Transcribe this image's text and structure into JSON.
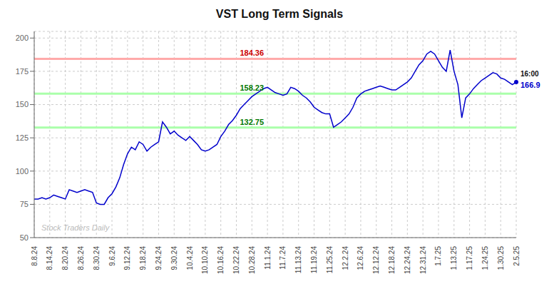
{
  "chart_data": {
    "type": "line",
    "title": "VST Long Term Signals",
    "categories": [
      "8.8.24",
      null,
      null,
      null,
      "8.14.24",
      null,
      null,
      null,
      "8.20.24",
      null,
      null,
      null,
      "8.26.24",
      null,
      null,
      null,
      "8.30.24",
      null,
      null,
      null,
      "9.6.24",
      null,
      null,
      null,
      "9.12.24",
      null,
      null,
      null,
      "9.18.24",
      null,
      null,
      null,
      "9.24.24",
      null,
      null,
      null,
      "9.30.24",
      null,
      null,
      null,
      "10.4.24",
      null,
      null,
      null,
      "10.10.24",
      null,
      null,
      null,
      "10.16.24",
      null,
      null,
      null,
      "10.22.24",
      null,
      null,
      null,
      "10.28.24",
      null,
      null,
      null,
      "11.1.24",
      null,
      null,
      null,
      "11.7.24",
      null,
      null,
      null,
      "11.13.24",
      null,
      null,
      null,
      "11.19.24",
      null,
      null,
      null,
      "11.25.24",
      null,
      null,
      null,
      "12.2.24",
      null,
      null,
      null,
      "12.6.24",
      null,
      null,
      null,
      "12.12.24",
      null,
      null,
      null,
      "12.18.24",
      null,
      null,
      null,
      "12.24.24",
      null,
      null,
      null,
      "12.31.24",
      null,
      null,
      null,
      "1.7.25",
      null,
      null,
      null,
      "1.13.25",
      null,
      null,
      null,
      "1.17.25",
      null,
      null,
      null,
      "1.24.25",
      null,
      null,
      null,
      "1.30.25",
      null,
      null,
      null,
      "2.5.25"
    ],
    "values": [
      79,
      79,
      80,
      79,
      80,
      82,
      81,
      80,
      79,
      86,
      85,
      84,
      85,
      86,
      85,
      84,
      76,
      75,
      75,
      80,
      83,
      88,
      95,
      105,
      113,
      118,
      116,
      122,
      120,
      115,
      118,
      120,
      122,
      137,
      133,
      128,
      130,
      127,
      125,
      123,
      126,
      123,
      120,
      116,
      115,
      116,
      118,
      120,
      126,
      130,
      135,
      138,
      142,
      147,
      150,
      153,
      156,
      158,
      160,
      162,
      163,
      161,
      159,
      158,
      157,
      158,
      163,
      162,
      160,
      157,
      155,
      152,
      148,
      146,
      144,
      143,
      143,
      133,
      135,
      137,
      140,
      143,
      148,
      155,
      158,
      160,
      161,
      162,
      163,
      164,
      163,
      162,
      161,
      161,
      163,
      165,
      167,
      170,
      175,
      180,
      183,
      188,
      190,
      188,
      183,
      178,
      175,
      191,
      175,
      165,
      140,
      155,
      158,
      162,
      165,
      168,
      170,
      172,
      174,
      173,
      170,
      169,
      167,
      165,
      166.9
    ],
    "color": "#0000cc",
    "ylim": [
      50,
      205
    ],
    "yticks": [
      50,
      75,
      100,
      125,
      150,
      175,
      200
    ],
    "grid": true,
    "hlines": [
      {
        "value": 184.36,
        "label": "184.36",
        "color": "#ffaaaa",
        "label_color": "#cc0000"
      },
      {
        "value": 158.23,
        "label": "158.23",
        "color": "#aaffaa",
        "label_color": "#007700"
      },
      {
        "value": 132.75,
        "label": "132.75",
        "color": "#aaffaa",
        "label_color": "#007700"
      }
    ],
    "end_annotation": {
      "time": "16:00",
      "text": "166.9",
      "value": 166.9,
      "color": "#0000cc"
    },
    "watermark": {
      "text": "Stock Traders Daily",
      "color": "#bbbbbb"
    }
  }
}
